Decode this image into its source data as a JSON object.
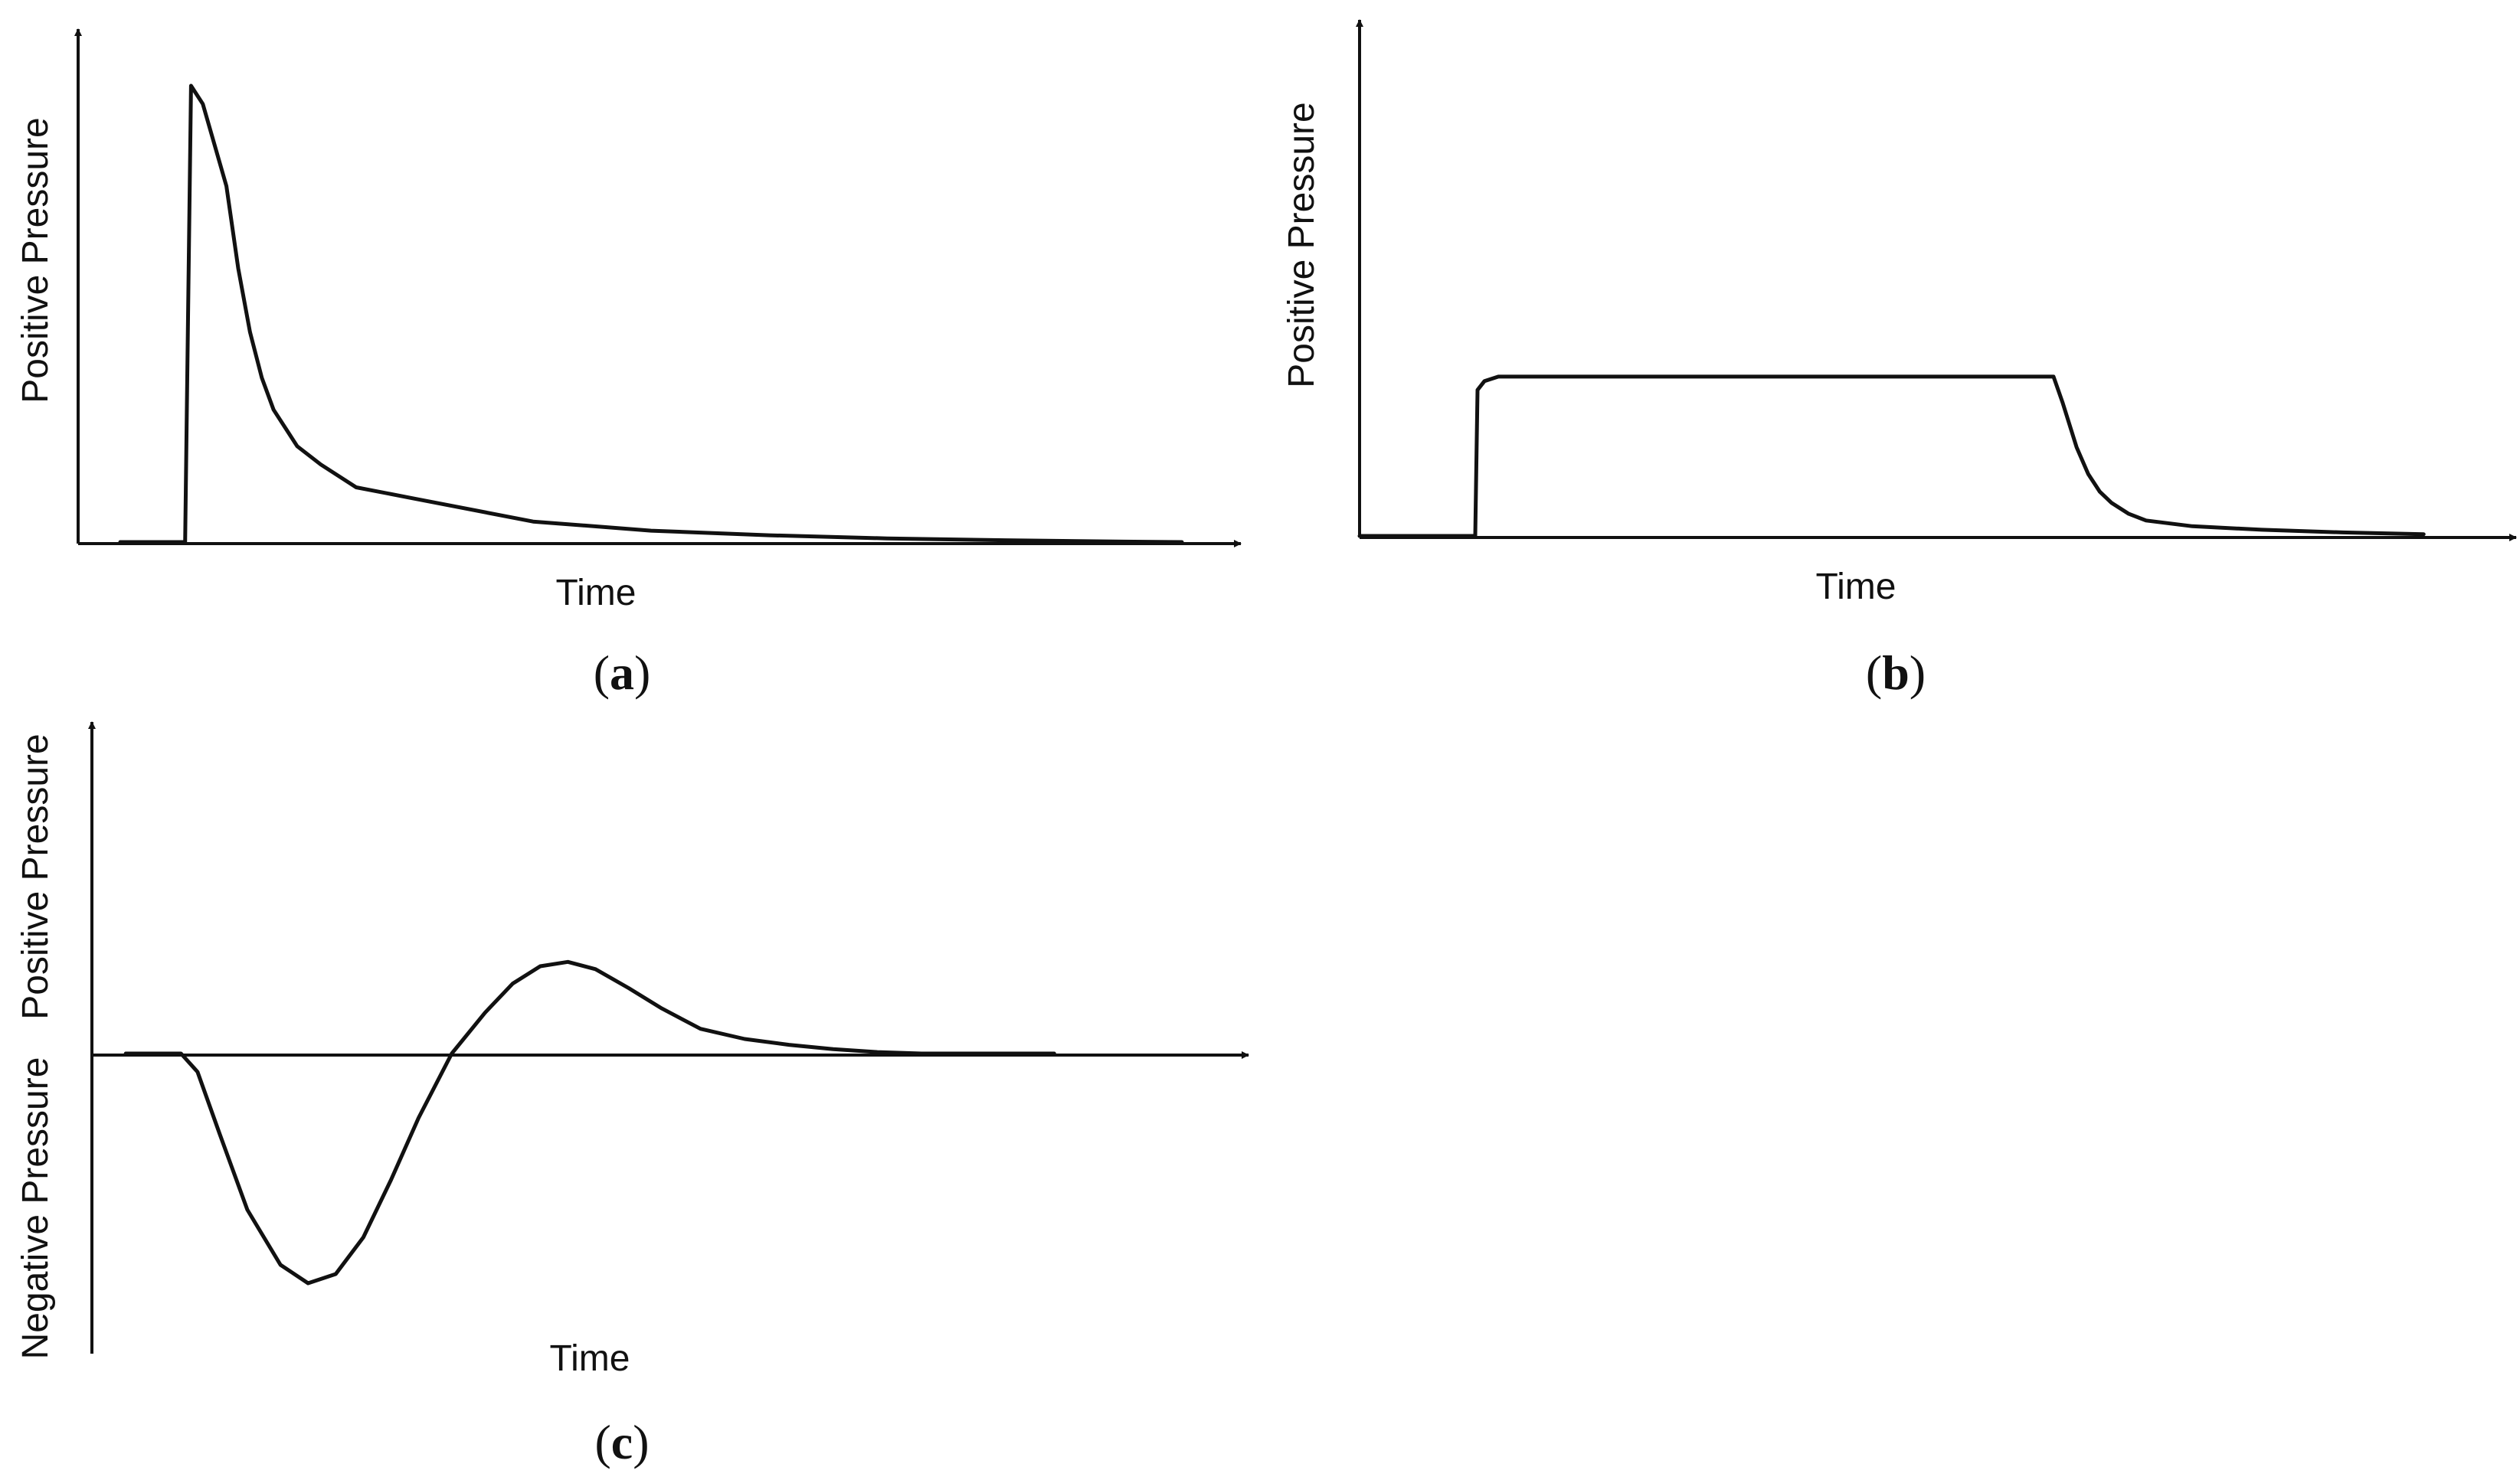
{
  "colors": {
    "line": "#111111",
    "background": "#ffffff"
  },
  "chart_data": [
    {
      "type": "line",
      "panel": "(a)",
      "panel_letter": "a",
      "xlabel": "Time",
      "ylabel": "Positive Pressure",
      "xlim": [
        0,
        100
      ],
      "ylim": [
        0,
        100
      ],
      "grid": false,
      "series": [
        {
          "x": [
            5,
            10.5,
            11,
            12,
            14,
            15,
            16,
            17,
            18,
            20,
            22,
            25,
            30,
            40,
            50,
            60,
            70,
            80,
            90,
            95
          ],
          "values": [
            0,
            0,
            100,
            96,
            78,
            60,
            46,
            36,
            29,
            21,
            17,
            12,
            9.5,
            4.5,
            2.5,
            1.5,
            0.8,
            0.4,
            0.1,
            0
          ]
        }
      ]
    },
    {
      "type": "line",
      "panel": "(b)",
      "panel_letter": "b",
      "xlabel": "Time",
      "ylabel": "Positive Pressure",
      "xlim": [
        0,
        100
      ],
      "ylim": [
        0,
        100
      ],
      "grid": false,
      "series": [
        {
          "x": [
            0,
            10,
            10.2,
            10.8,
            12,
            30,
            50,
            60,
            60.8,
            62,
            63,
            64,
            65,
            66.5,
            68,
            72,
            78,
            85,
            92
          ],
          "values": [
            0,
            0,
            33,
            35,
            36,
            36,
            36,
            36,
            30,
            20,
            14,
            10,
            7.5,
            5,
            3.5,
            2.2,
            1.4,
            0.8,
            0.4
          ]
        }
      ]
    },
    {
      "type": "line",
      "panel": "(c)",
      "panel_letter": "c",
      "xlabel": "Time",
      "ylabel_positive": "Positive Pressure",
      "ylabel_negative": "Negative Pressure",
      "xlim": [
        0,
        100
      ],
      "ylim": [
        -100,
        100
      ],
      "grid": false,
      "series": [
        {
          "x": [
            5,
            10,
            11.5,
            13.5,
            16,
            19,
            21.5,
            24,
            26.5,
            29,
            31.5,
            34.5,
            37.5,
            40,
            42.5,
            45,
            47.5,
            50.5,
            53.5,
            57,
            61,
            65,
            69,
            73,
            77,
            81,
            85,
            89
          ],
          "values": [
            0,
            0,
            -8,
            -35,
            -68,
            -92,
            -100,
            -96,
            -80,
            -55,
            -28,
            0,
            28,
            48,
            60,
            63,
            58,
            45,
            31,
            17,
            10,
            6,
            3,
            1,
            0,
            0,
            0,
            0
          ]
        }
      ]
    }
  ]
}
